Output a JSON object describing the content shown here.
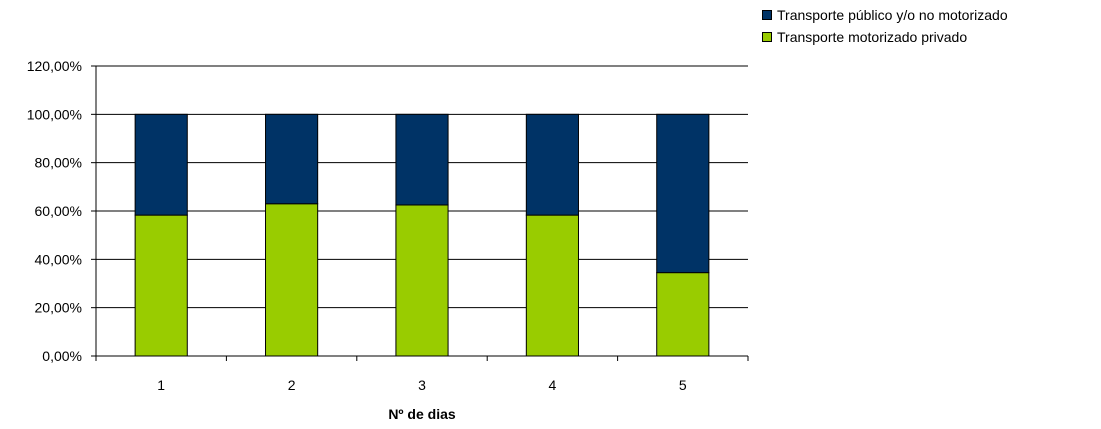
{
  "chart_data": {
    "type": "bar",
    "stacked": true,
    "categories": [
      "1",
      "2",
      "3",
      "4",
      "5"
    ],
    "series": [
      {
        "name": "Transporte motorizado privado",
        "color": "#99cc00",
        "values": [
          58.3,
          63.0,
          62.5,
          58.3,
          34.5
        ]
      },
      {
        "name": "Transporte público y/o no motorizado",
        "color": "#003366",
        "values": [
          41.7,
          37.0,
          37.5,
          41.7,
          65.5
        ]
      }
    ],
    "xlabel": "Nº de dias",
    "ylabel": "",
    "ylim": [
      0,
      120
    ],
    "yticks": [
      "0,00%",
      "20,00%",
      "40,00%",
      "60,00%",
      "80,00%",
      "100,00%",
      "120,00%"
    ],
    "grid": true,
    "legend_position": "top-right"
  }
}
